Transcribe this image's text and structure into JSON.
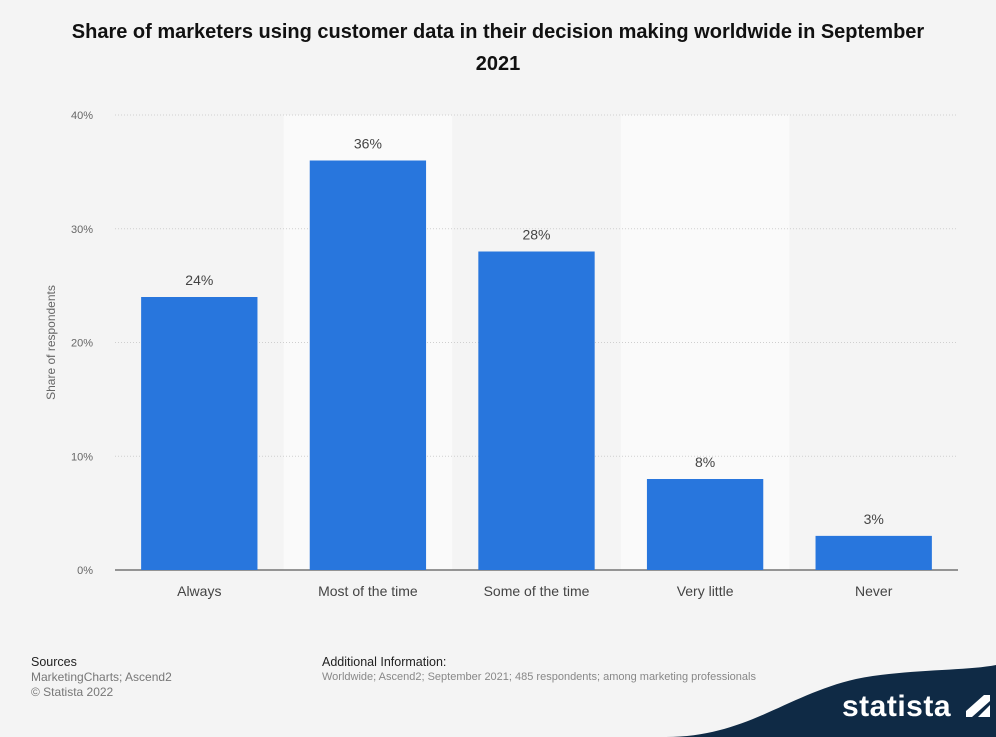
{
  "chart_data": {
    "type": "bar",
    "title": "Share of marketers using customer data in their decision making worldwide in September 2021",
    "xlabel": "",
    "ylabel": "Share of respondents",
    "ylim": [
      0,
      40
    ],
    "yticks": [
      "0%",
      "10%",
      "20%",
      "30%",
      "40%"
    ],
    "categories": [
      "Always",
      "Most of the time",
      "Some of the time",
      "Very little",
      "Never"
    ],
    "values": [
      24,
      36,
      28,
      8,
      3
    ],
    "data_labels": [
      "24%",
      "36%",
      "28%",
      "8%",
      "3%"
    ],
    "bar_color": "#2876dd"
  },
  "footer": {
    "sources_heading": "Sources",
    "sources_text": "MarketingCharts; Ascend2",
    "copyright": "© Statista 2022",
    "additional_heading": "Additional Information:",
    "additional_text": "Worldwide; Ascend2; September 2021; 485 respondents; among marketing professionals"
  },
  "brand": {
    "name": "statista",
    "band_color": "#0f2a45"
  }
}
